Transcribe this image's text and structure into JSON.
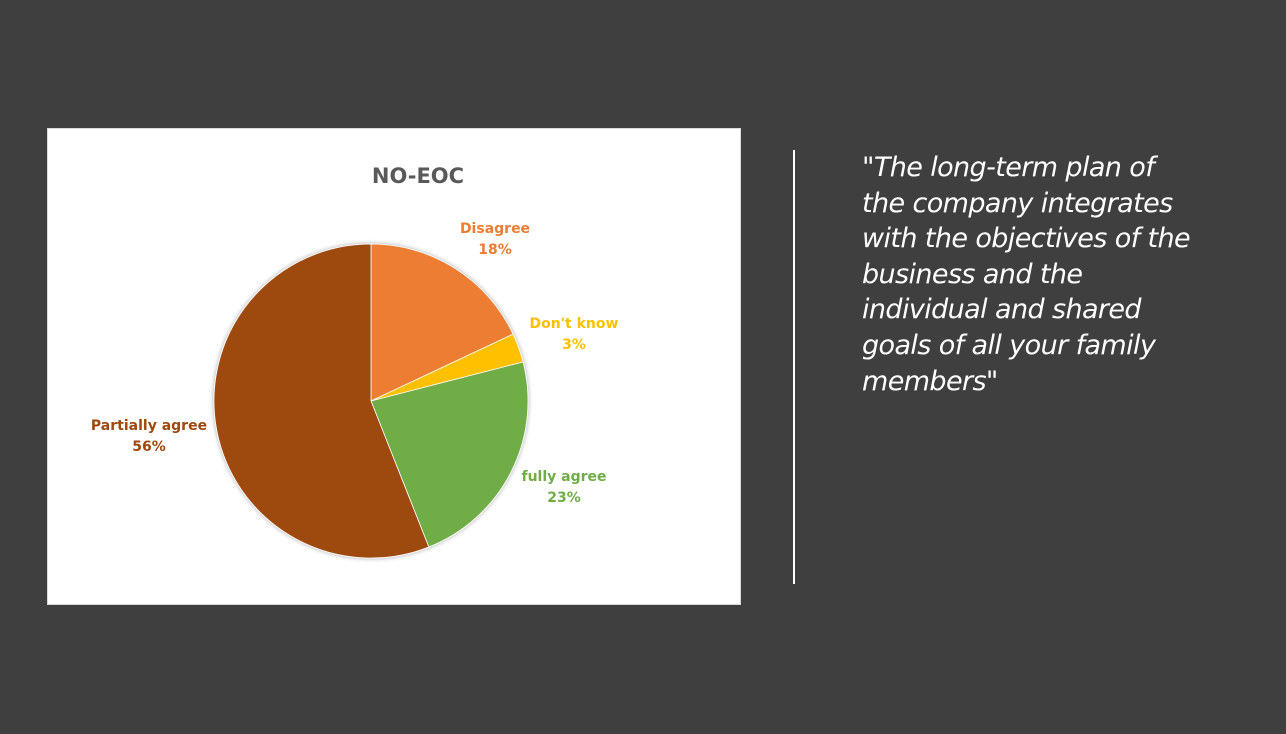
{
  "chart_data": {
    "type": "pie",
    "title": "NO-EOC",
    "slices": [
      {
        "label": "Disagree",
        "percent_label": "18%",
        "value": 18,
        "color": "#ed7d31"
      },
      {
        "label": "Don't know",
        "percent_label": "3%",
        "value": 3,
        "color": "#ffc000"
      },
      {
        "label": "fully agree",
        "percent_label": "23%",
        "value": 23,
        "color": "#70ad47"
      },
      {
        "label": "Partially agree",
        "percent_label": "56%",
        "value": 56,
        "color": "#9e480e"
      }
    ],
    "legend": "none",
    "data_labels": "category name and percentage"
  },
  "quote": {
    "lines": [
      "\"The long-term plan of",
      "the company integrates",
      "with the objectives of the",
      "business and the",
      "individual and shared",
      "goals of all your family",
      "members\""
    ]
  },
  "colors": {
    "slide_background": "#3f3f3f",
    "chart_background": "#ffffff",
    "title_text": "#595959",
    "quote_text": "#ffffff"
  }
}
